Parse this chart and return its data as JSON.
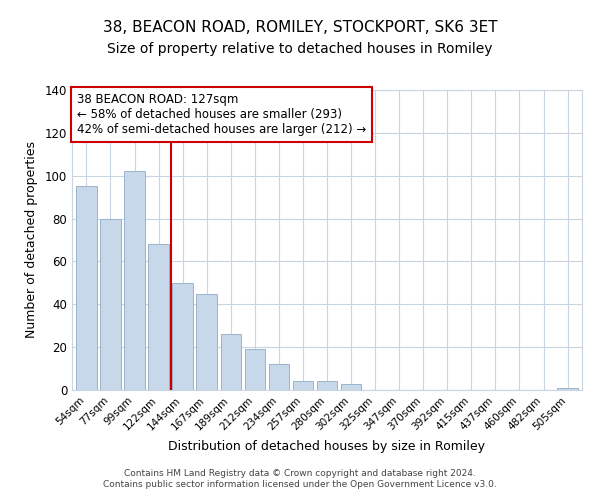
{
  "title": "38, BEACON ROAD, ROMILEY, STOCKPORT, SK6 3ET",
  "subtitle": "Size of property relative to detached houses in Romiley",
  "xlabel": "Distribution of detached houses by size in Romiley",
  "ylabel": "Number of detached properties",
  "bar_labels": [
    "54sqm",
    "77sqm",
    "99sqm",
    "122sqm",
    "144sqm",
    "167sqm",
    "189sqm",
    "212sqm",
    "234sqm",
    "257sqm",
    "280sqm",
    "302sqm",
    "325sqm",
    "347sqm",
    "370sqm",
    "392sqm",
    "415sqm",
    "437sqm",
    "460sqm",
    "482sqm",
    "505sqm"
  ],
  "bar_values": [
    95,
    80,
    102,
    68,
    50,
    45,
    26,
    19,
    12,
    4,
    4,
    3,
    0,
    0,
    0,
    0,
    0,
    0,
    0,
    0,
    1
  ],
  "bar_color": "#c8d8eb",
  "bar_edge_color": "#9ab4cc",
  "vline_index": 3,
  "vline_color": "#cc0000",
  "ylim": [
    0,
    140
  ],
  "yticks": [
    0,
    20,
    40,
    60,
    80,
    100,
    120,
    140
  ],
  "annotation_title": "38 BEACON ROAD: 127sqm",
  "annotation_line1": "← 58% of detached houses are smaller (293)",
  "annotation_line2": "42% of semi-detached houses are larger (212) →",
  "annotation_box_color": "#ffffff",
  "annotation_box_edge": "#cc0000",
  "footer1": "Contains HM Land Registry data © Crown copyright and database right 2024.",
  "footer2": "Contains public sector information licensed under the Open Government Licence v3.0.",
  "background_color": "#ffffff",
  "grid_color": "#c8d4df",
  "title_fontsize": 11,
  "subtitle_fontsize": 10
}
